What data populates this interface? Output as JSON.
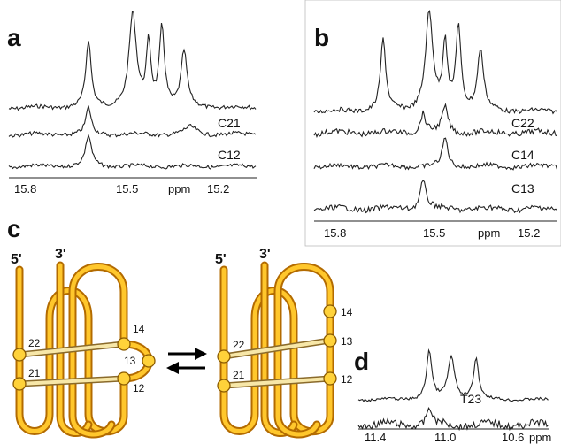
{
  "panels": {
    "a": {
      "label": "a",
      "trace_labels": [
        "C21",
        "C12"
      ],
      "axis_labels": [
        "15.8",
        "15.5",
        "ppm",
        "15.2"
      ]
    },
    "b": {
      "label": "b",
      "trace_labels": [
        "C22",
        "C14",
        "C13"
      ],
      "axis_labels": [
        "15.8",
        "15.5",
        "ppm",
        "15.2"
      ]
    },
    "c": {
      "label": "c",
      "left": {
        "ends": [
          "5'",
          "3'"
        ],
        "nodes": [
          "22",
          "21",
          "14",
          "13",
          "12"
        ]
      },
      "right": {
        "ends": [
          "5'",
          "3'"
        ],
        "nodes": [
          "22",
          "21",
          "14",
          "13",
          "12"
        ]
      }
    },
    "d": {
      "label": "d",
      "trace_labels": [
        "T23"
      ],
      "axis_labels": [
        "11.4",
        "11.0",
        "10.6",
        "ppm"
      ]
    }
  }
}
